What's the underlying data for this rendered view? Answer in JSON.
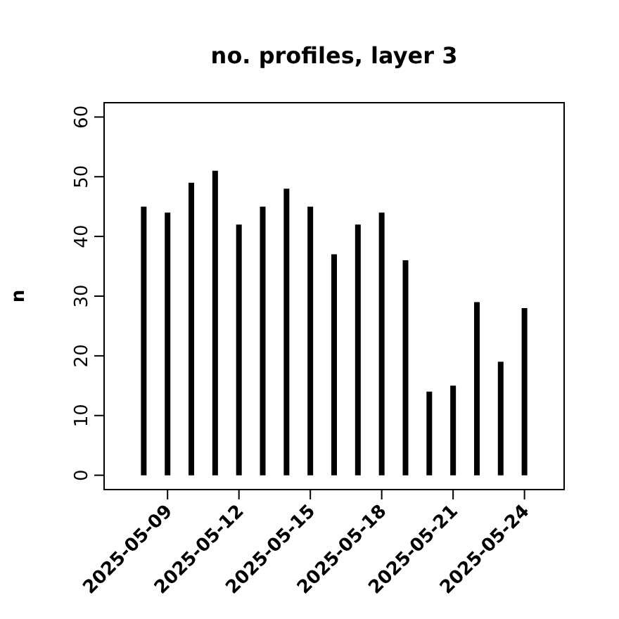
{
  "chart_data": {
    "type": "bar",
    "title": "no. profiles, layer 3",
    "ylabel": "n",
    "x": [
      "2025-05-08",
      "2025-05-09",
      "2025-05-10",
      "2025-05-11",
      "2025-05-12",
      "2025-05-13",
      "2025-05-14",
      "2025-05-15",
      "2025-05-16",
      "2025-05-17",
      "2025-05-18",
      "2025-05-19",
      "2025-05-20",
      "2025-05-21",
      "2025-05-22",
      "2025-05-23",
      "2025-05-24"
    ],
    "values": [
      45,
      44,
      49,
      51,
      42,
      45,
      48,
      45,
      37,
      42,
      44,
      36,
      14,
      15,
      29,
      19,
      28
    ],
    "color": "#000000",
    "xlim": [
      "2025-05-06T08:00",
      "2025-05-25T16:00"
    ],
    "xticks": [
      {
        "value": "2025-05-09",
        "label": "2025-05-09"
      },
      {
        "value": "2025-05-12",
        "label": "2025-05-12"
      },
      {
        "value": "2025-05-15",
        "label": "2025-05-15"
      },
      {
        "value": "2025-05-18",
        "label": "2025-05-18"
      },
      {
        "value": "2025-05-21",
        "label": "2025-05-21"
      },
      {
        "value": "2025-05-24",
        "label": "2025-05-24"
      }
    ],
    "ylim": [
      -2.4,
      62.4
    ],
    "yticks": [
      0,
      10,
      20,
      30,
      40,
      50,
      60
    ],
    "grid": false
  }
}
